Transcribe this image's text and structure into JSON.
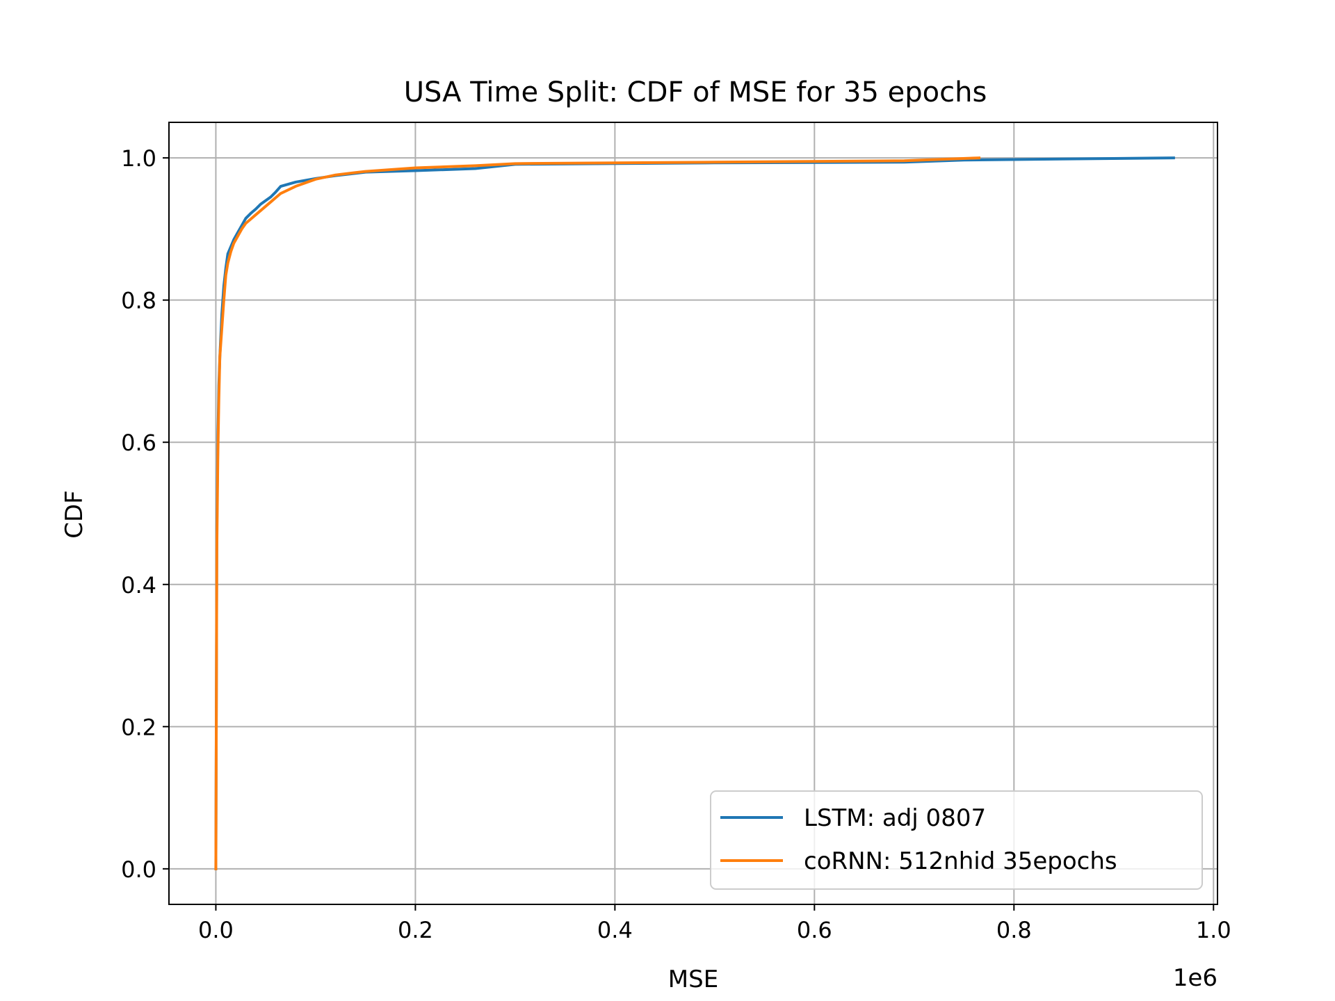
{
  "chart_data": {
    "type": "line",
    "title": "USA Time Split: CDF of MSE for 35 epochs",
    "xlabel": "MSE",
    "ylabel": "CDF",
    "x_offset_text": "1e6",
    "xlim": [
      -0.047,
      1.004
    ],
    "ylim": [
      -0.05,
      1.05
    ],
    "x_ticks": [
      0.0,
      0.2,
      0.4,
      0.6,
      0.8,
      1.0
    ],
    "x_tick_labels": [
      "0.0",
      "0.2",
      "0.4",
      "0.6",
      "0.8",
      "1.0"
    ],
    "y_ticks": [
      0.0,
      0.2,
      0.4,
      0.6,
      0.8,
      1.0
    ],
    "y_tick_labels": [
      "0.0",
      "0.2",
      "0.4",
      "0.6",
      "0.8",
      "1.0"
    ],
    "grid": true,
    "legend_position": "lower-right",
    "series": [
      {
        "name": "LSTM: adj 0807",
        "color": "#1f77b4",
        "x": [
          0.0,
          0.001,
          0.002,
          0.003,
          0.004,
          0.006,
          0.008,
          0.01,
          0.012,
          0.015,
          0.018,
          0.022,
          0.026,
          0.03,
          0.035,
          0.04,
          0.045,
          0.05,
          0.055,
          0.06,
          0.065,
          0.08,
          0.1,
          0.12,
          0.15,
          0.2,
          0.26,
          0.3,
          0.5,
          0.69,
          0.75,
          0.96
        ],
        "y": [
          0.0,
          0.48,
          0.6,
          0.68,
          0.72,
          0.78,
          0.82,
          0.845,
          0.865,
          0.875,
          0.885,
          0.895,
          0.905,
          0.915,
          0.922,
          0.928,
          0.935,
          0.94,
          0.945,
          0.952,
          0.96,
          0.966,
          0.971,
          0.975,
          0.98,
          0.982,
          0.985,
          0.991,
          0.993,
          0.994,
          0.997,
          1.0
        ]
      },
      {
        "name": "coRNN: 512nhid 35epochs",
        "color": "#ff7f0e",
        "x": [
          0.0,
          0.001,
          0.002,
          0.003,
          0.004,
          0.006,
          0.008,
          0.01,
          0.012,
          0.015,
          0.018,
          0.022,
          0.026,
          0.03,
          0.035,
          0.04,
          0.045,
          0.05,
          0.055,
          0.06,
          0.065,
          0.08,
          0.1,
          0.12,
          0.15,
          0.2,
          0.26,
          0.3,
          0.5,
          0.69,
          0.765
        ],
        "y": [
          0.0,
          0.45,
          0.58,
          0.66,
          0.72,
          0.76,
          0.8,
          0.835,
          0.852,
          0.868,
          0.88,
          0.89,
          0.9,
          0.908,
          0.914,
          0.92,
          0.926,
          0.932,
          0.938,
          0.944,
          0.95,
          0.96,
          0.97,
          0.976,
          0.981,
          0.986,
          0.989,
          0.992,
          0.994,
          0.996,
          1.0
        ]
      }
    ]
  }
}
